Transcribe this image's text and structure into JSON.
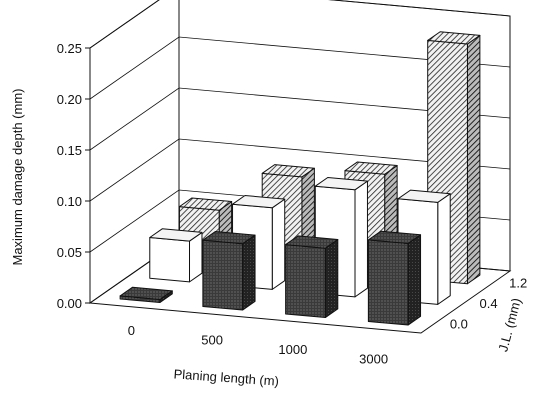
{
  "chart_data": {
    "type": "bar",
    "projection": "3d",
    "title": "",
    "xlabel": "Planing length (m)",
    "ylabel": "Maximum damage depth (mm)",
    "zlabel": "J.L. (mm)",
    "x_categories": [
      "0",
      "500",
      "1000",
      "3000"
    ],
    "z_categories": [
      "0.0",
      "0.4",
      "1.2"
    ],
    "yticks": [
      "0.00",
      "0.05",
      "0.10",
      "0.15",
      "0.20",
      "0.25"
    ],
    "ylim": [
      0,
      0.25
    ],
    "grid": true,
    "series": [
      {
        "values": [
          0.003,
          0.065,
          0.068,
          0.08
        ],
        "fill": "dark-stipple"
      },
      {
        "values": [
          0.04,
          0.08,
          0.105,
          0.1
        ],
        "fill": "white"
      },
      {
        "values": [
          0.05,
          0.09,
          0.1,
          0.235
        ],
        "fill": "hatched"
      }
    ]
  }
}
